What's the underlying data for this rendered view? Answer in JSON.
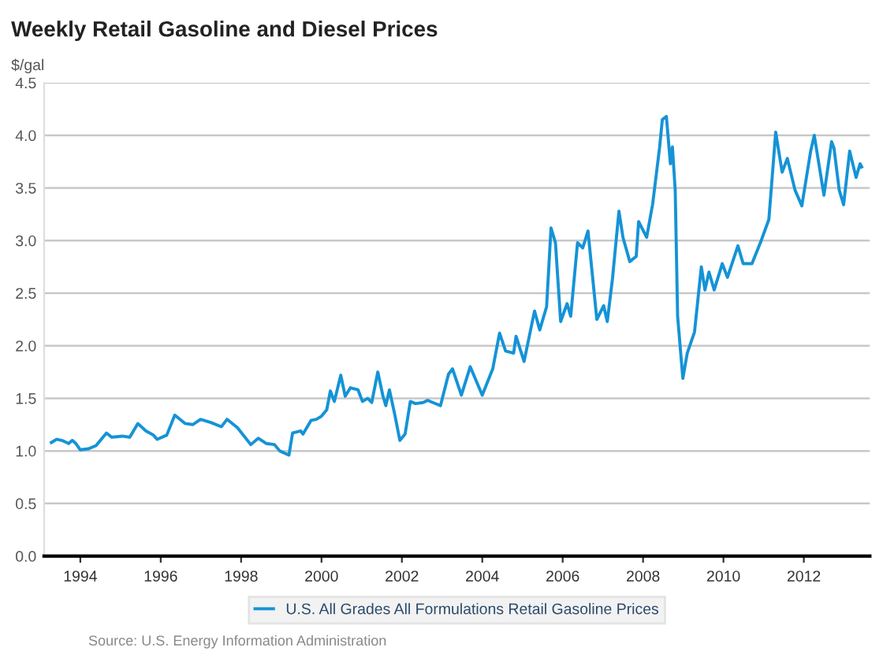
{
  "chart_data": {
    "type": "line",
    "title": "Weekly Retail Gasoline and Diesel Prices",
    "ylabel": "$/gal",
    "x": [
      1993.28,
      1993.41,
      1993.54,
      1993.71,
      1993.8,
      1993.89,
      1994.0,
      1994.2,
      1994.39,
      1994.65,
      1994.78,
      1995.04,
      1995.23,
      1995.43,
      1995.63,
      1995.82,
      1995.91,
      1996.15,
      1996.35,
      1996.61,
      1996.8,
      1996.99,
      1997.25,
      1997.51,
      1997.65,
      1997.91,
      1998.24,
      1998.43,
      1998.63,
      1998.83,
      1998.96,
      1999.19,
      1999.28,
      1999.48,
      1999.54,
      1999.74,
      1999.87,
      2000.0,
      2000.13,
      2000.22,
      2000.32,
      2000.48,
      2000.59,
      2000.72,
      2000.91,
      2001.02,
      2001.15,
      2001.25,
      2001.4,
      2001.53,
      2001.6,
      2001.69,
      2001.82,
      2001.95,
      2002.08,
      2002.21,
      2002.34,
      2002.53,
      2002.64,
      2002.96,
      2003.16,
      2003.26,
      2003.48,
      2003.7,
      2004.0,
      2004.26,
      2004.43,
      2004.58,
      2004.78,
      2004.84,
      2005.04,
      2005.3,
      2005.43,
      2005.6,
      2005.71,
      2005.82,
      2005.95,
      2006.11,
      2006.2,
      2006.37,
      2006.5,
      2006.63,
      2006.85,
      2007.02,
      2007.11,
      2007.24,
      2007.4,
      2007.5,
      2007.67,
      2007.83,
      2007.89,
      2008.09,
      2008.24,
      2008.41,
      2008.48,
      2008.58,
      2008.68,
      2008.73,
      2008.8,
      2008.86,
      2008.99,
      2009.1,
      2009.19,
      2009.28,
      2009.45,
      2009.54,
      2009.64,
      2009.77,
      2009.97,
      2010.1,
      2010.36,
      2010.49,
      2010.71,
      2010.94,
      2011.13,
      2011.3,
      2011.46,
      2011.59,
      2011.78,
      2011.95,
      2012.17,
      2012.26,
      2012.5,
      2012.69,
      2012.75,
      2012.88,
      2012.99,
      2013.14,
      2013.3,
      2013.4,
      2013.44
    ],
    "series": [
      {
        "name": "U.S. All Grades All Formulations Retail Gasoline Prices",
        "color": "#1593d6",
        "values": [
          1.08,
          1.11,
          1.1,
          1.07,
          1.1,
          1.07,
          1.01,
          1.02,
          1.05,
          1.17,
          1.13,
          1.14,
          1.13,
          1.26,
          1.19,
          1.15,
          1.11,
          1.15,
          1.34,
          1.26,
          1.25,
          1.3,
          1.27,
          1.23,
          1.3,
          1.22,
          1.06,
          1.12,
          1.07,
          1.06,
          1.0,
          0.96,
          1.17,
          1.19,
          1.16,
          1.29,
          1.3,
          1.33,
          1.39,
          1.57,
          1.47,
          1.72,
          1.52,
          1.6,
          1.58,
          1.47,
          1.5,
          1.46,
          1.75,
          1.52,
          1.43,
          1.58,
          1.35,
          1.1,
          1.16,
          1.47,
          1.45,
          1.46,
          1.48,
          1.43,
          1.73,
          1.78,
          1.53,
          1.8,
          1.53,
          1.78,
          2.12,
          1.95,
          1.93,
          2.09,
          1.85,
          2.33,
          2.15,
          2.37,
          3.12,
          2.98,
          2.23,
          2.4,
          2.28,
          2.98,
          2.93,
          3.09,
          2.25,
          2.38,
          2.23,
          2.64,
          3.28,
          3.03,
          2.8,
          2.85,
          3.18,
          3.03,
          3.35,
          3.88,
          4.15,
          4.18,
          3.73,
          3.89,
          3.48,
          2.28,
          1.69,
          1.93,
          2.03,
          2.13,
          2.75,
          2.53,
          2.7,
          2.53,
          2.78,
          2.65,
          2.95,
          2.78,
          2.78,
          3.0,
          3.2,
          4.03,
          3.65,
          3.78,
          3.48,
          3.33,
          3.85,
          4.0,
          3.43,
          3.94,
          3.88,
          3.48,
          3.34,
          3.85,
          3.6,
          3.73,
          3.7
        ]
      }
    ],
    "xlim": [
      1993.1,
      2013.64
    ],
    "xticks": [
      1994,
      1996,
      1998,
      2000,
      2002,
      2004,
      2006,
      2008,
      2010,
      2012
    ],
    "ylim": [
      0,
      4.5
    ],
    "yticks": [
      {
        "value": 0,
        "label": "0.0"
      },
      {
        "value": 0.5,
        "label": "0.5"
      },
      {
        "value": 1,
        "label": "1.0"
      },
      {
        "value": 1.5,
        "label": "1.5"
      },
      {
        "value": 2,
        "label": "2.0"
      },
      {
        "value": 2.5,
        "label": "2.5"
      },
      {
        "value": 3,
        "label": "3.0"
      },
      {
        "value": 3.5,
        "label": "3.5"
      },
      {
        "value": 4,
        "label": "4.0"
      },
      {
        "value": 4.5,
        "label": "4.5"
      }
    ],
    "grid": "y",
    "legend": "bottom",
    "marker": "none",
    "line_style": "solid",
    "annotations": [
      "Source: U.S. Energy Information Administration"
    ]
  }
}
